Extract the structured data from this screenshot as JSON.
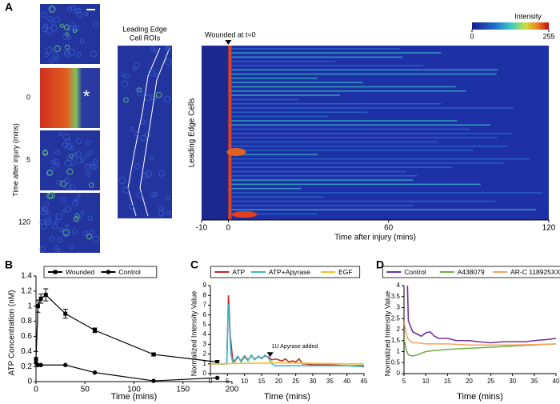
{
  "figure": {
    "panel_labels": [
      "A",
      "B",
      "C",
      "D"
    ],
    "images": {
      "times": [
        "0",
        "5",
        "120"
      ],
      "y_label": "Time after injury (mins)",
      "asterisk": "*",
      "roi_title": [
        "Leading Edge",
        "Cell ROIs"
      ]
    }
  },
  "chart_data": [
    {
      "type": "heatmap",
      "annotation": "Wounded at t=0",
      "x_label": "Time after injury (mins)",
      "y_label": "Leading Edge Cells",
      "xlim": [
        -10,
        120
      ],
      "xticks": [
        -10,
        0,
        60,
        120
      ],
      "colorbar_label": "Intensity",
      "clim": [
        0,
        255
      ],
      "cticks": [
        0,
        255
      ]
    },
    {
      "type": "line",
      "x_label": "Time (mins)",
      "y_label": "ATP Concentration (nM)",
      "legend": "top",
      "xlim": [
        0,
        200
      ],
      "xticks": [
        0,
        50,
        100,
        150,
        200
      ],
      "ylim": [
        0,
        1.4
      ],
      "yticks": [
        0,
        0.2,
        0.4,
        0.6,
        0.8,
        1,
        1.2,
        1.4
      ],
      "series": [
        {
          "name": "Wounded",
          "color": "#000000",
          "marker": "square",
          "x": [
            0,
            2,
            5,
            10,
            30,
            60,
            120,
            185
          ],
          "values": [
            0.3,
            1.0,
            1.1,
            1.15,
            0.9,
            0.68,
            0.36,
            0.26
          ],
          "errors": [
            0.1,
            0.08,
            0.06,
            0.08,
            0.06,
            0.03,
            0.02,
            0.02
          ]
        },
        {
          "name": "Control",
          "color": "#000000",
          "marker": "circle",
          "x": [
            0,
            2,
            5,
            30,
            60,
            120,
            185
          ],
          "values": [
            0.25,
            0.22,
            0.22,
            0.22,
            0.12,
            0.01,
            0.05
          ]
        }
      ]
    },
    {
      "type": "line",
      "x_label": "Time (mins)",
      "y_label": "Normalized Intensity Value",
      "legend": "top",
      "annotation": "1U Apyrase added",
      "xlim": [
        0,
        45
      ],
      "xticks": [
        0,
        5,
        10,
        15,
        20,
        25,
        30,
        35,
        40,
        45
      ],
      "ylim": [
        0,
        9
      ],
      "yticks": [
        0,
        1,
        2,
        3,
        4,
        5,
        6,
        7,
        8,
        9
      ],
      "series": [
        {
          "name": "ATP",
          "color": "#c0282d",
          "x": [
            0,
            4.8,
            5.3,
            5.8,
            6.5,
            7,
            8,
            9,
            10,
            11,
            12,
            13,
            14,
            15,
            16,
            17,
            18,
            19,
            20,
            21,
            22,
            23,
            24,
            25,
            26,
            27,
            28,
            30,
            35,
            40,
            45
          ],
          "values": [
            1,
            1,
            8,
            4,
            1.5,
            1.2,
            1.7,
            1.3,
            1.8,
            1.4,
            1.8,
            1.5,
            1.7,
            1.6,
            1.8,
            1.7,
            1.4,
            1.5,
            1.4,
            1.3,
            1.5,
            1.2,
            1.3,
            1.2,
            1.5,
            1.0,
            1.0,
            0.9,
            0.9,
            0.8,
            0.8
          ]
        },
        {
          "name": "ATP+Apyrase",
          "color": "#3cb8c8",
          "x": [
            0,
            4.8,
            5.2,
            5.6,
            6,
            6.5,
            7,
            8,
            9,
            10,
            11,
            12,
            13,
            14,
            15,
            16,
            17,
            18,
            19,
            20,
            25,
            30,
            35,
            40,
            45
          ],
          "values": [
            1,
            1,
            7.1,
            5,
            2,
            1.2,
            1.3,
            1.8,
            1.2,
            1.7,
            1.3,
            1.9,
            1.4,
            1.8,
            1.5,
            1.9,
            1.6,
            1.0,
            0.8,
            0.8,
            0.8,
            0.8,
            0.8,
            0.8,
            0.7
          ]
        },
        {
          "name": "EGF",
          "color": "#f0c020",
          "x": [
            0,
            10,
            20,
            30,
            40,
            45
          ],
          "values": [
            1,
            1.05,
            1.1,
            1.05,
            1.0,
            1.0
          ]
        }
      ]
    },
    {
      "type": "line",
      "x_label": "Time (mins)",
      "y_label": "Normalized Intensity Value",
      "legend": "top",
      "xlim": [
        5,
        40
      ],
      "xticks": [
        5,
        10,
        15,
        20,
        25,
        30,
        35,
        40
      ],
      "ylim": [
        0,
        4
      ],
      "yticks": [
        0,
        0.5,
        1,
        1.5,
        2,
        2.5,
        3,
        3.5,
        4
      ],
      "series": [
        {
          "name": "Control",
          "color": "#7030a0",
          "x": [
            5.8,
            6,
            7,
            8,
            9,
            10,
            11,
            12,
            13,
            15,
            17,
            20,
            22,
            25,
            28,
            30,
            33,
            35,
            38,
            40
          ],
          "values": [
            4,
            2.4,
            1.9,
            1.8,
            1.7,
            1.85,
            1.9,
            1.7,
            1.6,
            1.6,
            1.5,
            1.5,
            1.45,
            1.4,
            1.45,
            1.45,
            1.45,
            1.5,
            1.55,
            1.6
          ]
        },
        {
          "name": "A438079",
          "color": "#70ad47",
          "x": [
            5,
            5.5,
            6,
            7,
            8,
            10,
            12,
            15,
            20,
            25,
            30,
            35,
            40
          ],
          "values": [
            1.6,
            1.1,
            0.85,
            0.8,
            0.85,
            1.0,
            1.05,
            1.1,
            1.15,
            1.2,
            1.25,
            1.3,
            1.35
          ]
        },
        {
          "name": "AR-C 118925XX",
          "color": "#f4a460",
          "x": [
            5,
            5.5,
            6,
            7,
            8,
            10,
            15,
            20,
            25,
            30,
            35,
            40
          ],
          "values": [
            2.4,
            1.8,
            1.55,
            1.4,
            1.4,
            1.35,
            1.35,
            1.3,
            1.3,
            1.3,
            1.32,
            1.35
          ]
        }
      ]
    }
  ]
}
